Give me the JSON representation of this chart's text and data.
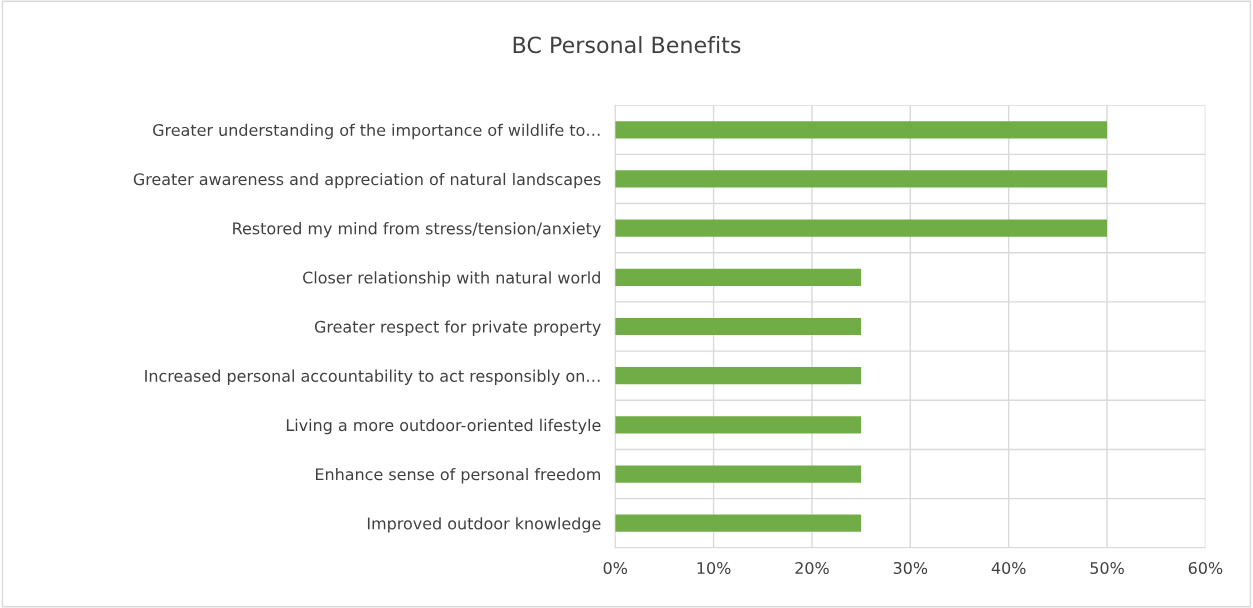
{
  "chart_data": {
    "type": "bar",
    "orientation": "horizontal",
    "title": "BC Personal Benefits",
    "categories": [
      "Greater understanding of the importance of wildlife to…",
      "Greater awareness and appreciation of natural landscapes",
      "Restored my mind from stress/tension/anxiety",
      "Closer relationship with natural world",
      "Greater respect for private property",
      "Increased personal accountability to act responsibly on…",
      "Living a more outdoor-oriented lifestyle",
      "Enhance sense of personal freedom",
      "Improved outdoor knowledge"
    ],
    "values": [
      50,
      50,
      50,
      25,
      25,
      25,
      25,
      25,
      25
    ],
    "color": "#70ad47",
    "xlim": [
      0,
      60
    ],
    "xticks": [
      {
        "value": 0,
        "label": "0%"
      },
      {
        "value": 10,
        "label": "10%"
      },
      {
        "value": 20,
        "label": "20%"
      },
      {
        "value": 30,
        "label": "30%"
      },
      {
        "value": 40,
        "label": "40%"
      },
      {
        "value": 50,
        "label": "50%"
      },
      {
        "value": 60,
        "label": "60%"
      }
    ],
    "grid": true
  }
}
